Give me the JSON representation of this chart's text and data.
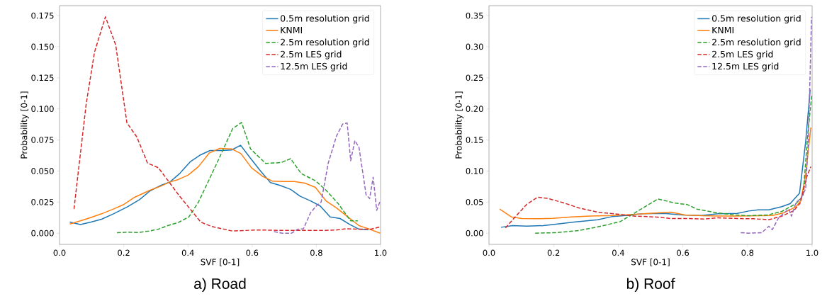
{
  "chart_data": [
    {
      "type": "line",
      "title": "a) Road",
      "xlabel": "SVF [0-1]",
      "ylabel": "Probability [0-1]",
      "legend": "top right",
      "xlim": [
        0,
        1
      ],
      "ylim": [
        -0.009,
        0.183
      ],
      "xticks": [
        {
          "value": 0,
          "label": "0.0"
        },
        {
          "value": 0.2,
          "label": "0.2"
        },
        {
          "value": 0.4,
          "label": "0.4"
        },
        {
          "value": 0.6,
          "label": "0.6"
        },
        {
          "value": 0.8,
          "label": "0.8"
        },
        {
          "value": 1,
          "label": "1.0"
        }
      ],
      "yticks": [
        {
          "value": 0,
          "label": "0.000"
        },
        {
          "value": 0.025,
          "label": "0.025"
        },
        {
          "value": 0.05,
          "label": "0.050"
        },
        {
          "value": 0.075,
          "label": "0.075"
        },
        {
          "value": 0.1,
          "label": "0.100"
        },
        {
          "value": 0.125,
          "label": "0.125"
        },
        {
          "value": 0.15,
          "label": "0.150"
        },
        {
          "value": 0.175,
          "label": "0.175"
        }
      ],
      "series": [
        {
          "name": "0.5m resolution grid",
          "color": "#1f77b4",
          "line_style": "solid",
          "x": [
            0.032,
            0.065,
            0.098,
            0.131,
            0.168,
            0.212,
            0.249,
            0.282,
            0.315,
            0.344,
            0.374,
            0.407,
            0.44,
            0.469,
            0.506,
            0.536,
            0.564,
            0.595,
            0.624,
            0.657,
            0.687,
            0.72,
            0.749,
            0.782,
            0.812,
            0.843,
            0.874,
            0.904,
            0.933,
            0.962
          ],
          "values": [
            0.0089,
            0.007,
            0.0089,
            0.0112,
            0.0156,
            0.0213,
            0.027,
            0.034,
            0.0384,
            0.0412,
            0.0479,
            0.0574,
            0.0631,
            0.0665,
            0.0665,
            0.0669,
            0.0707,
            0.0602,
            0.0507,
            0.0407,
            0.0384,
            0.0352,
            0.0298,
            0.026,
            0.0219,
            0.0131,
            0.0118,
            0.007,
            0.0032,
            0.0029
          ]
        },
        {
          "name": "KNMI",
          "color": "#ff7f0e",
          "line_style": "solid",
          "x": [
            0.032,
            0.065,
            0.098,
            0.131,
            0.168,
            0.201,
            0.234,
            0.282,
            0.315,
            0.344,
            0.366,
            0.4,
            0.433,
            0.466,
            0.499,
            0.536,
            0.565,
            0.598,
            0.631,
            0.664,
            0.698,
            0.731,
            0.764,
            0.797,
            0.83,
            0.863,
            0.9,
            0.933,
            0.962,
            0.999
          ],
          "values": [
            0.0074,
            0.0099,
            0.0127,
            0.0156,
            0.0194,
            0.0232,
            0.0289,
            0.0346,
            0.0378,
            0.0412,
            0.0428,
            0.0466,
            0.0536,
            0.0644,
            0.0682,
            0.0678,
            0.064,
            0.0526,
            0.046,
            0.0418,
            0.0416,
            0.0416,
            0.0403,
            0.0369,
            0.026,
            0.0203,
            0.0127,
            0.0061,
            0.0036,
            0.0
          ]
        },
        {
          "name": "2.5m resolution grid",
          "color": "#2ca02c",
          "line_style": "dashed",
          "x": [
            0.179,
            0.212,
            0.245,
            0.278,
            0.308,
            0.337,
            0.37,
            0.403,
            0.433,
            0.466,
            0.499,
            0.539,
            0.567,
            0.595,
            0.642,
            0.69,
            0.72,
            0.753,
            0.797,
            0.83,
            0.867,
            0.907,
            0.929
          ],
          "values": [
            0.0004,
            0.0008,
            0.0006,
            0.0017,
            0.0032,
            0.0061,
            0.0086,
            0.0131,
            0.0251,
            0.0431,
            0.0612,
            0.084,
            0.0891,
            0.0678,
            0.0561,
            0.0568,
            0.0599,
            0.0479,
            0.0422,
            0.0346,
            0.0241,
            0.0099,
            0.0099
          ]
        },
        {
          "name": "2.5m LES grid",
          "color": "#d62728",
          "line_style": "dashed",
          "x": [
            0.045,
            0.065,
            0.083,
            0.109,
            0.143,
            0.175,
            0.21,
            0.241,
            0.274,
            0.308,
            0.341,
            0.374,
            0.407,
            0.44,
            0.473,
            0.506,
            0.539,
            0.572,
            0.606,
            0.639,
            0.675,
            0.712,
            0.749,
            0.786,
            0.823,
            0.859,
            0.893,
            0.933,
            0.97,
            0.999
          ],
          "values": [
            0.0194,
            0.064,
            0.1039,
            0.1457,
            0.174,
            0.1514,
            0.0887,
            0.0773,
            0.0564,
            0.0526,
            0.0412,
            0.0298,
            0.0194,
            0.0089,
            0.0055,
            0.0036,
            0.0017,
            0.0021,
            0.0025,
            0.0025,
            0.0023,
            0.0023,
            0.0023,
            0.0023,
            0.0023,
            0.0025,
            0.0036,
            0.0032,
            0.0032,
            0.0051
          ]
        },
        {
          "name": "12.5m LES grid",
          "color": "#9467bd",
          "line_style": "dashed",
          "x": [
            0.668,
            0.694,
            0.723,
            0.742,
            0.76,
            0.782,
            0.801,
            0.815,
            0.837,
            0.863,
            0.882,
            0.896,
            0.907,
            0.92,
            0.933,
            0.955,
            0.966,
            0.977,
            0.988,
            0.999
          ],
          "values": [
            0.0013,
            0.0,
            0.0,
            0.0032,
            0.0036,
            0.0165,
            0.0222,
            0.0251,
            0.0564,
            0.0783,
            0.0878,
            0.0887,
            0.0583,
            0.0745,
            0.0688,
            0.0308,
            0.0279,
            0.045,
            0.0184,
            0.026
          ]
        }
      ]
    },
    {
      "type": "line",
      "title": "b) Roof",
      "xlabel": "SVF [0-1]",
      "ylabel": "Probability [0-1]",
      "legend": "top right",
      "xlim": [
        0,
        1
      ],
      "ylim": [
        -0.018,
        0.366
      ],
      "xticks": [
        {
          "value": 0,
          "label": "0.0"
        },
        {
          "value": 0.2,
          "label": "0.2"
        },
        {
          "value": 0.4,
          "label": "0.4"
        },
        {
          "value": 0.6,
          "label": "0.6"
        },
        {
          "value": 0.8,
          "label": "0.8"
        },
        {
          "value": 1,
          "label": "1.0"
        }
      ],
      "yticks": [
        {
          "value": 0,
          "label": "0.00"
        },
        {
          "value": 0.05,
          "label": "0.05"
        },
        {
          "value": 0.1,
          "label": "0.10"
        },
        {
          "value": 0.15,
          "label": "0.15"
        },
        {
          "value": 0.2,
          "label": "0.20"
        },
        {
          "value": 0.25,
          "label": "0.25"
        },
        {
          "value": 0.3,
          "label": "0.30"
        },
        {
          "value": 0.35,
          "label": "0.35"
        }
      ],
      "series": [
        {
          "name": "0.5m resolution grid",
          "color": "#1f77b4",
          "line_style": "solid",
          "x": [
            0.037,
            0.073,
            0.117,
            0.168,
            0.212,
            0.263,
            0.336,
            0.38,
            0.424,
            0.475,
            0.541,
            0.599,
            0.658,
            0.709,
            0.768,
            0.804,
            0.833,
            0.866,
            0.906,
            0.932,
            0.961,
            0.98,
            0.994
          ],
          "values": [
            0.0095,
            0.0122,
            0.0114,
            0.0122,
            0.0148,
            0.0179,
            0.0217,
            0.0266,
            0.0285,
            0.0312,
            0.0319,
            0.0293,
            0.0285,
            0.0312,
            0.0319,
            0.0357,
            0.0376,
            0.0376,
            0.0426,
            0.0475,
            0.0642,
            0.147,
            0.231
          ]
        },
        {
          "name": "KNMI",
          "color": "#ff7f0e",
          "line_style": "solid",
          "x": [
            0.033,
            0.069,
            0.102,
            0.146,
            0.197,
            0.256,
            0.314,
            0.38,
            0.439,
            0.497,
            0.563,
            0.607,
            0.658,
            0.716,
            0.775,
            0.833,
            0.877,
            0.914,
            0.95,
            0.965,
            0.98,
            0.996
          ],
          "values": [
            0.0388,
            0.0262,
            0.0236,
            0.0232,
            0.0239,
            0.0262,
            0.0277,
            0.0285,
            0.03,
            0.0319,
            0.0338,
            0.0293,
            0.0281,
            0.0277,
            0.0277,
            0.0281,
            0.0285,
            0.0331,
            0.0426,
            0.0521,
            0.0939,
            0.17
          ]
        },
        {
          "name": "2.5m resolution grid",
          "color": "#2ca02c",
          "line_style": "dashed",
          "x": [
            0.143,
            0.205,
            0.278,
            0.344,
            0.406,
            0.461,
            0.523,
            0.577,
            0.614,
            0.643,
            0.702,
            0.76,
            0.804,
            0.863,
            0.906,
            0.95,
            0.972,
            0.987,
            0.999
          ],
          "values": [
            0.0,
            0.0008,
            0.0042,
            0.011,
            0.0186,
            0.0357,
            0.0551,
            0.0483,
            0.046,
            0.0388,
            0.0331,
            0.0293,
            0.0281,
            0.0293,
            0.035,
            0.0475,
            0.0597,
            0.162,
            0.223
          ]
        },
        {
          "name": "2.5m LES grid",
          "color": "#d62728",
          "line_style": "dashed",
          "x": [
            0.051,
            0.08,
            0.117,
            0.15,
            0.183,
            0.234,
            0.278,
            0.336,
            0.395,
            0.453,
            0.512,
            0.563,
            0.614,
            0.665,
            0.709,
            0.768,
            0.819,
            0.866,
            0.906,
            0.943,
            0.963,
            0.983,
            0.996
          ],
          "values": [
            0.0084,
            0.0255,
            0.0464,
            0.0578,
            0.0559,
            0.0483,
            0.0407,
            0.0338,
            0.0308,
            0.0274,
            0.0262,
            0.0236,
            0.0236,
            0.0228,
            0.0247,
            0.0236,
            0.0232,
            0.0217,
            0.0274,
            0.0361,
            0.0483,
            0.0901,
            0.107
          ]
        },
        {
          "name": "12.5m LES grid",
          "color": "#9467bd",
          "line_style": "dashed",
          "x": [
            0.779,
            0.804,
            0.844,
            0.866,
            0.877,
            0.895,
            0.914,
            0.928,
            0.936,
            0.95,
            0.965,
            0.98,
            0.988,
            0.994,
            0.998
          ],
          "values": [
            0.0008,
            0.0,
            0.0008,
            0.011,
            0.0057,
            0.0236,
            0.0331,
            0.0388,
            0.0274,
            0.049,
            0.0559,
            0.0711,
            0.147,
            0.261,
            0.348
          ]
        }
      ]
    }
  ]
}
